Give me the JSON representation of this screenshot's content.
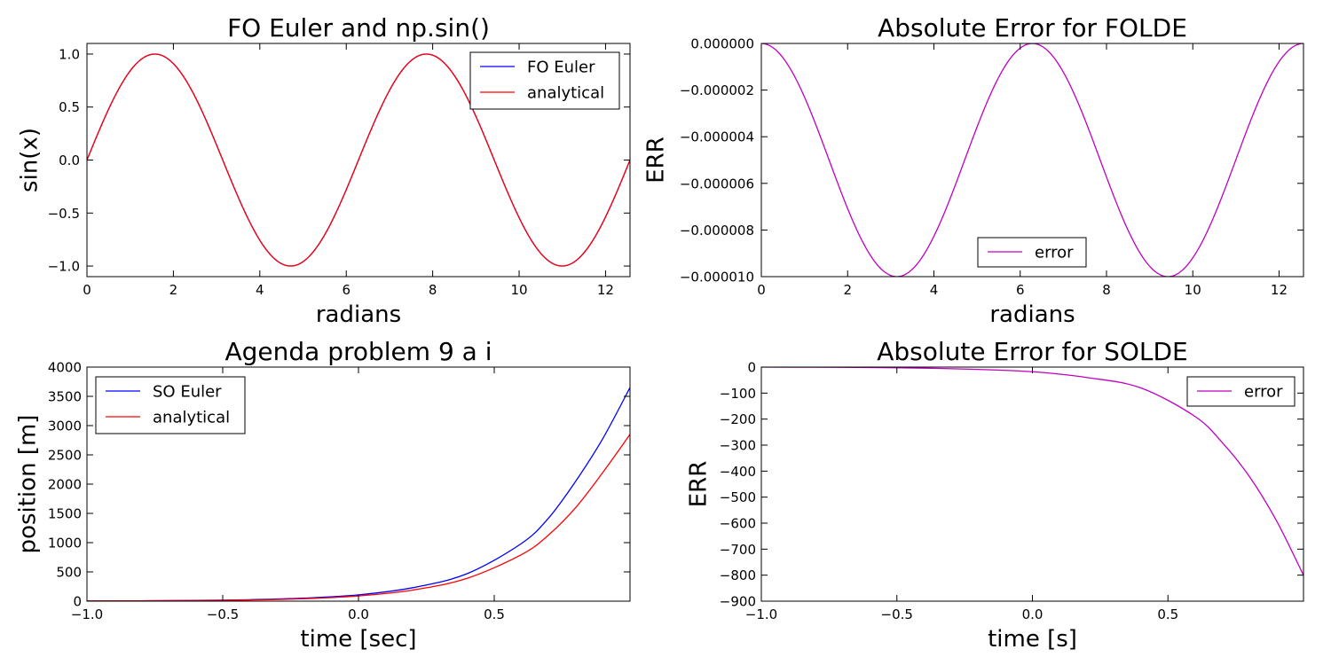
{
  "chart_data": [
    {
      "id": "fo",
      "type": "line",
      "title": "FO Euler and np.sin()",
      "xlabel": "radians",
      "ylabel": "sin(x)",
      "xlim": [
        0,
        12.566
      ],
      "ylim": [
        -1.1,
        1.1
      ],
      "xticks": [
        0,
        2,
        4,
        6,
        8,
        10,
        12
      ],
      "xtick_labels": [
        "0",
        "2",
        "4",
        "6",
        "8",
        "10",
        "12"
      ],
      "yticks": [
        1.0,
        0.5,
        0.0,
        -0.5,
        -1.0
      ],
      "ytick_labels": [
        "1.0",
        "0.5",
        "0.0",
        "−0.5",
        "−1.0"
      ],
      "grid": false,
      "legend": "top-right",
      "series": [
        {
          "name": "FO Euler",
          "color": "#0000ff",
          "func": "sin",
          "x_range": [
            0,
            12.566
          ]
        },
        {
          "name": "analytical",
          "color": "#ff0000",
          "func": "sin",
          "x_range": [
            0,
            12.566
          ]
        }
      ]
    },
    {
      "id": "folde",
      "type": "line",
      "title": "Absolute Error for FOLDE",
      "xlabel": "radians",
      "ylabel": "ERR",
      "xlim": [
        0,
        12.566
      ],
      "ylim": [
        -1e-05,
        0.0
      ],
      "xticks": [
        0,
        2,
        4,
        6,
        8,
        10,
        12
      ],
      "xtick_labels": [
        "0",
        "2",
        "4",
        "6",
        "8",
        "10",
        "12"
      ],
      "yticks": [
        0.0,
        -2e-06,
        -4e-06,
        -6e-06,
        -8e-06,
        -1e-05
      ],
      "ytick_labels": [
        "0.000000",
        "−0.000002",
        "−0.000004",
        "−0.000006",
        "−0.000008",
        "−0.000010"
      ],
      "grid": false,
      "legend": "bottom-center",
      "series": [
        {
          "name": "error",
          "color": "#bf00bf",
          "func": "cos_error",
          "amplitude": 5e-06,
          "x_range": [
            0,
            12.566
          ]
        }
      ]
    },
    {
      "id": "so",
      "type": "line",
      "title": "Agenda problem 9 a i",
      "xlabel": "time [sec]",
      "ylabel": "position [m]",
      "xlim": [
        -1.0,
        1.0
      ],
      "ylim": [
        0,
        4000
      ],
      "xticks": [
        -1.0,
        -0.5,
        0.0,
        0.5
      ],
      "xtick_labels": [
        "−1.0",
        "−0.5",
        "0.0",
        "0.5"
      ],
      "yticks": [
        0,
        500,
        1000,
        1500,
        2000,
        2500,
        3000,
        3500,
        4000
      ],
      "ytick_labels": [
        "0",
        "500",
        "1000",
        "1500",
        "2000",
        "2500",
        "3000",
        "3500",
        "4000"
      ],
      "grid": false,
      "legend": "top-left",
      "series": [
        {
          "name": "SO Euler",
          "color": "#0000ff",
          "x": [
            -1.0,
            -0.8,
            -0.6,
            -0.4,
            -0.2,
            0.0,
            0.2,
            0.4,
            0.6,
            0.7,
            0.8,
            0.9,
            1.0
          ],
          "y": [
            3,
            6,
            12,
            25,
            52,
            108,
            230,
            470,
            985,
            1420,
            2050,
            2780,
            3650
          ]
        },
        {
          "name": "analytical",
          "color": "#ff0000",
          "x": [
            -1.0,
            -0.8,
            -0.6,
            -0.4,
            -0.2,
            0.0,
            0.2,
            0.4,
            0.6,
            0.7,
            0.8,
            0.9,
            1.0
          ],
          "y": [
            3,
            6,
            10,
            20,
            42,
            90,
            190,
            390,
            795,
            1130,
            1600,
            2200,
            2850
          ]
        }
      ]
    },
    {
      "id": "solde",
      "type": "line",
      "title": "Absolute Error for SOLDE",
      "xlabel": "time [s]",
      "ylabel": "ERR",
      "xlim": [
        -1.0,
        1.0
      ],
      "ylim": [
        -900,
        0
      ],
      "xticks": [
        -1.0,
        -0.5,
        0.0,
        0.5
      ],
      "xtick_labels": [
        "−1.0",
        "−0.5",
        "0.0",
        "0.5"
      ],
      "yticks": [
        0,
        -100,
        -200,
        -300,
        -400,
        -500,
        -600,
        -700,
        -800,
        -900
      ],
      "ytick_labels": [
        "0",
        "−100",
        "−200",
        "−300",
        "−400",
        "−500",
        "−600",
        "−700",
        "−800",
        "−900"
      ],
      "grid": false,
      "legend": "top-right",
      "series": [
        {
          "name": "error",
          "color": "#bf00bf",
          "x": [
            -1.0,
            -0.8,
            -0.6,
            -0.4,
            -0.2,
            0.0,
            0.2,
            0.4,
            0.6,
            0.7,
            0.8,
            0.9,
            1.0
          ],
          "y": [
            0,
            -0.5,
            -1.5,
            -4,
            -9,
            -18,
            -40,
            -80,
            -190,
            -290,
            -420,
            -590,
            -800
          ]
        }
      ]
    }
  ]
}
